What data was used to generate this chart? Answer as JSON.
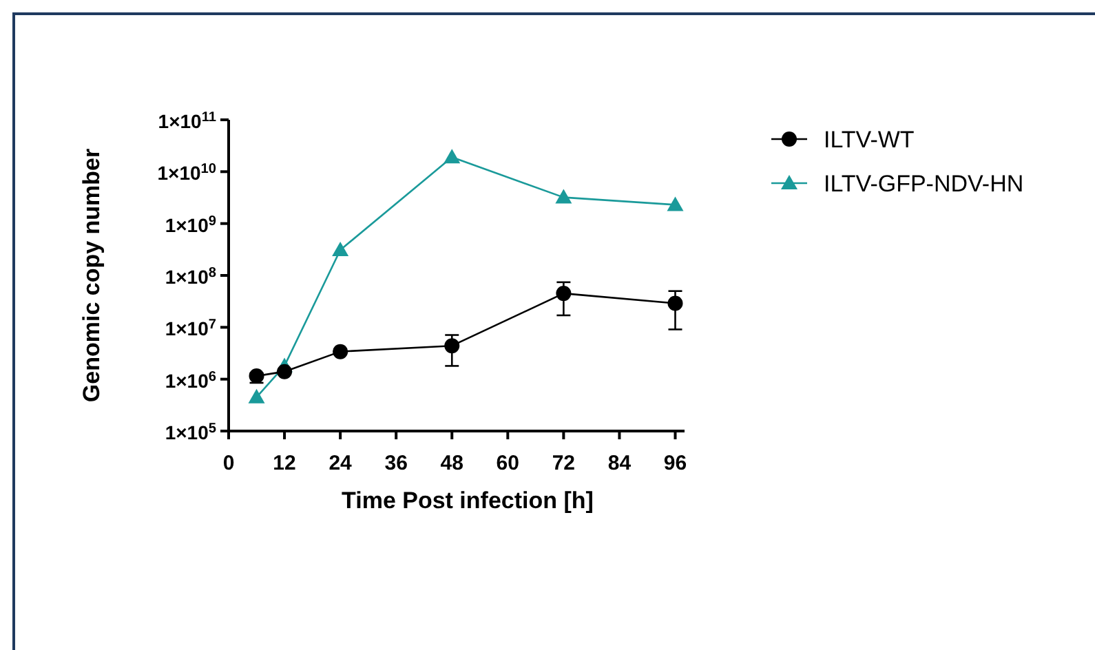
{
  "chart_data": {
    "type": "line",
    "xlabel": "Time Post infection [h]",
    "ylabel": "Genomic copy number",
    "xlim": [
      0,
      98
    ],
    "xticks": [
      0,
      12,
      24,
      36,
      48,
      60,
      72,
      84,
      96
    ],
    "ylim": [
      100000,
      100000000000
    ],
    "log": true,
    "yticks": [
      {
        "value": 100000,
        "label": "1×10$^{5}$"
      },
      {
        "value": 1000000,
        "label": "1×10$^{6}$"
      },
      {
        "value": 10000000,
        "label": "1×10$^{7}$"
      },
      {
        "value": 100000000,
        "label": "1×10$^{8}$"
      },
      {
        "value": 1000000000,
        "label": "1×10$^{9}$"
      },
      {
        "value": 10000000000,
        "label": "1×10$^{10}$"
      },
      {
        "value": 100000000000,
        "label": "1×10$^{11}$"
      }
    ],
    "legend": "right",
    "grid": false,
    "series": [
      {
        "name": "ILTV-WT",
        "color": "#000000",
        "marker": "circle",
        "x": [
          6,
          12,
          24,
          48,
          72,
          96
        ],
        "values": [
          1150000,
          1400000,
          3400000,
          4400000,
          45000000,
          29000000
        ],
        "errors": [
          [
            850000,
            1300000
          ],
          null,
          null,
          [
            1800000,
            7100000
          ],
          [
            17000000,
            74000000
          ],
          [
            9100000,
            50000000
          ]
        ]
      },
      {
        "name": "ILTV-GFP-NDV-HN",
        "color": "#1a9a9a",
        "marker": "triangle",
        "x": [
          6,
          12,
          24,
          48,
          72,
          96
        ],
        "values": [
          450000,
          1800000,
          310000000,
          19000000000,
          3200000000,
          2300000000
        ]
      }
    ]
  }
}
